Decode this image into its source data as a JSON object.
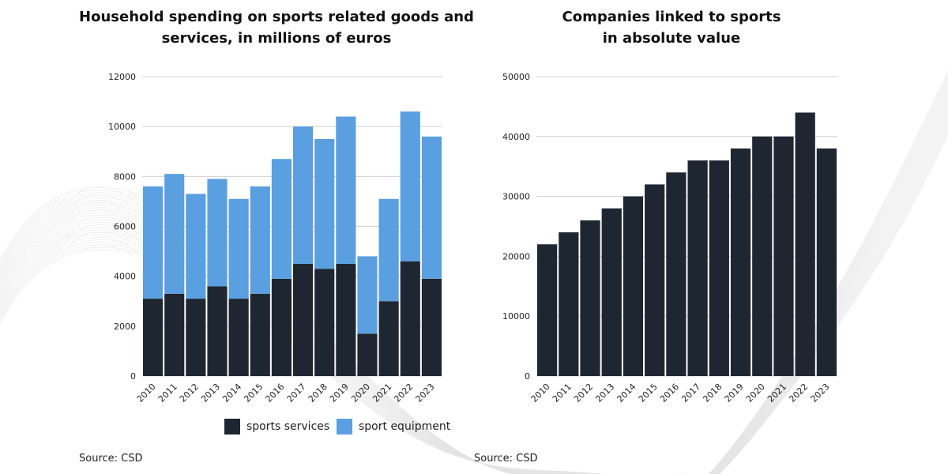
{
  "colors": {
    "services": "#1e2731",
    "equipment": "#5a9fe0",
    "grid": "#d0d0d0"
  },
  "chart_data": [
    {
      "type": "bar",
      "stacked": true,
      "title": "Household spending on sports related goods and services, in millions of euros",
      "title_lines": [
        "Household spending on sports related goods and",
        "services, in millions of euros"
      ],
      "categories": [
        "2010",
        "2011",
        "2012",
        "2013",
        "2014",
        "2015",
        "2016",
        "2017",
        "2018",
        "2019",
        "2020",
        "2021",
        "2022",
        "2023"
      ],
      "series": [
        {
          "name": "sports services",
          "values": [
            3100,
            3300,
            3100,
            3600,
            3100,
            3300,
            3900,
            4500,
            4300,
            4500,
            1700,
            3000,
            4600,
            3900
          ]
        },
        {
          "name": "sport equipment",
          "values": [
            4500,
            4800,
            4200,
            4300,
            4000,
            4300,
            4800,
            5500,
            5200,
            5900,
            3100,
            4100,
            6000,
            5700
          ]
        }
      ],
      "ylim": [
        0,
        12000
      ],
      "yticks": [
        0,
        2000,
        4000,
        6000,
        8000,
        10000,
        12000
      ],
      "grid": true,
      "legend": "bottom",
      "source": "Source: CSD"
    },
    {
      "type": "bar",
      "title": "Companies linked to sports in absolute value",
      "title_lines": [
        "Companies linked to sports",
        "in absolute value"
      ],
      "categories": [
        "2010",
        "2011",
        "2012",
        "2013",
        "2014",
        "2015",
        "2016",
        "2017",
        "2018",
        "2019",
        "2020",
        "2021",
        "2022",
        "2023"
      ],
      "values": [
        22000,
        24000,
        26000,
        28000,
        30000,
        32000,
        34000,
        36000,
        36000,
        38000,
        40000,
        40000,
        44000,
        38000
      ],
      "ylim": [
        0,
        50000
      ],
      "yticks": [
        0,
        10000,
        20000,
        30000,
        40000,
        50000
      ],
      "grid": true,
      "source": "Source: CSD"
    }
  ]
}
